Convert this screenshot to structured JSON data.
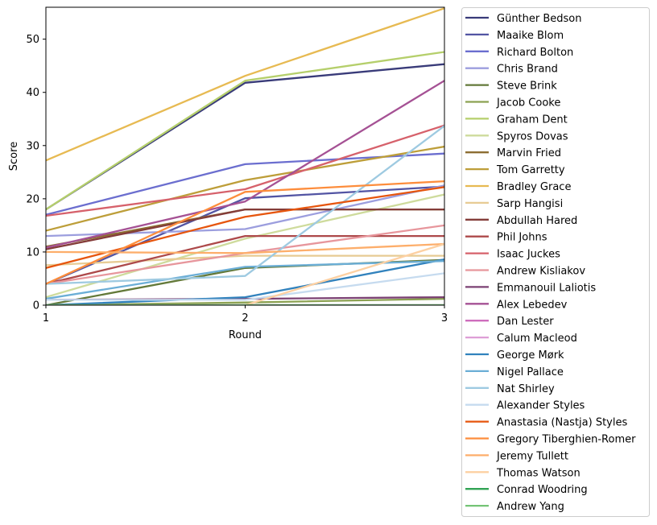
{
  "chart_data": {
    "type": "line",
    "title": "",
    "xlabel": "Round",
    "ylabel": "Score",
    "x": [
      1,
      2,
      3
    ],
    "xlim": [
      1,
      3
    ],
    "ylim": [
      0,
      56
    ],
    "xticks": [
      "1",
      "2",
      "3"
    ],
    "yticks": [
      "0",
      "10",
      "20",
      "30",
      "40",
      "50"
    ],
    "grid": false,
    "legend_position": "outside right",
    "series": [
      {
        "name": "Günther Bedson",
        "color": "#393b79",
        "values": [
          18,
          41.8,
          45.3
        ]
      },
      {
        "name": "Maaike Blom",
        "color": "#5254a3",
        "values": [
          4,
          20.1,
          22.3
        ]
      },
      {
        "name": "Richard Bolton",
        "color": "#6b6ecf",
        "values": [
          17,
          26.5,
          28.5
        ]
      },
      {
        "name": "Chris Brand",
        "color": "#9c9ede",
        "values": [
          13,
          14.3,
          22.5
        ]
      },
      {
        "name": "Steve Brink",
        "color": "#637939",
        "values": [
          0,
          7,
          8.5
        ]
      },
      {
        "name": "Jacob Cooke",
        "color": "#8ca252",
        "values": [
          0,
          0.5,
          1.2
        ]
      },
      {
        "name": "Graham Dent",
        "color": "#b5cf6b",
        "values": [
          18,
          42.2,
          47.6
        ]
      },
      {
        "name": "Spyros Dovas",
        "color": "#cedb9c",
        "values": [
          1.5,
          12.5,
          20.8
        ]
      },
      {
        "name": "Marvin Fried",
        "color": "#8c6d31",
        "values": [
          11,
          18,
          18
        ]
      },
      {
        "name": "Tom Garretty",
        "color": "#bd9e39",
        "values": [
          14,
          23.5,
          29.8
        ]
      },
      {
        "name": "Bradley Grace",
        "color": "#e7ba52",
        "values": [
          27.2,
          43.1,
          55.8
        ]
      },
      {
        "name": "Sarp Hangisi",
        "color": "#e7cb94",
        "values": [
          7.5,
          9.3,
          9.3
        ]
      },
      {
        "name": "Abdullah Hared",
        "color": "#843c39",
        "values": [
          10.5,
          18,
          18
        ]
      },
      {
        "name": "Phil Johns",
        "color": "#ad494a",
        "values": [
          4,
          13,
          13
        ]
      },
      {
        "name": "Isaac Juckes",
        "color": "#d6616b",
        "values": [
          16.8,
          21.8,
          33.8
        ]
      },
      {
        "name": "Andrew Kisliakov",
        "color": "#e7969c",
        "values": [
          4,
          9.8,
          15
        ]
      },
      {
        "name": "Emmanouil Laliotis",
        "color": "#7b4173",
        "values": [
          1,
          1.2,
          1.5
        ]
      },
      {
        "name": "Alex Lebedev",
        "color": "#a55194",
        "values": [
          10.8,
          19.5,
          42.2
        ]
      },
      {
        "name": "Dan Lester",
        "color": "#ce6dbd",
        "values": [
          0,
          0,
          0
        ]
      },
      {
        "name": "Calum Macleod",
        "color": "#de9ed6",
        "values": [
          0,
          0,
          0
        ]
      },
      {
        "name": "George Mørk",
        "color": "#3182bd",
        "values": [
          0,
          1.5,
          8.6
        ]
      },
      {
        "name": "Nigel Pallace",
        "color": "#6baed6",
        "values": [
          1.2,
          7.2,
          8.3
        ]
      },
      {
        "name": "Nat Shirley",
        "color": "#9ecae1",
        "values": [
          4,
          5.5,
          33.7
        ]
      },
      {
        "name": "Alexander Styles",
        "color": "#c6dbef",
        "values": [
          1,
          1,
          6
        ]
      },
      {
        "name": "Anastasia (Nastja) Styles",
        "color": "#e6550d",
        "values": [
          7,
          16.6,
          22.2
        ]
      },
      {
        "name": "Gregory Tiberghien-Romer",
        "color": "#fd8d3c",
        "values": [
          4,
          21.3,
          23.3
        ]
      },
      {
        "name": "Jeremy Tullett",
        "color": "#fdae6b",
        "values": [
          10,
          9.8,
          11.5
        ]
      },
      {
        "name": "Thomas Watson",
        "color": "#fdd0a2",
        "values": [
          0,
          0,
          11.5
        ]
      },
      {
        "name": "Conrad Woodring",
        "color": "#31a354",
        "values": [
          0,
          0,
          0
        ]
      },
      {
        "name": "Andrew Yang",
        "color": "#74c476",
        "values": [
          0,
          0,
          0
        ]
      }
    ]
  }
}
